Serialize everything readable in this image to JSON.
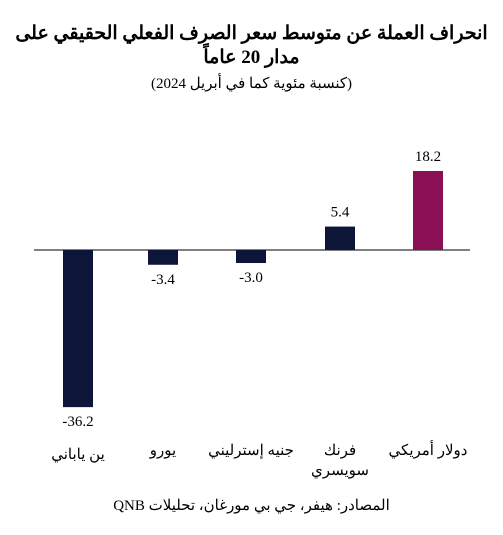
{
  "chart_data": {
    "type": "bar",
    "title": "انحراف العملة عن متوسط سعر الصرف الفعلي الحقيقي على مدار 20 عاماً",
    "subtitle": "(كنسبة مئوية كما في أبريل 2024)",
    "categories": [
      "دولار أمريكي",
      "فرنك سويسري",
      "جنيه إسترليني",
      "يورو",
      "ين ياباني"
    ],
    "values": [
      18.2,
      5.4,
      -3.0,
      -3.4,
      -36.2
    ],
    "value_labels": [
      "18.2",
      "5.4",
      "-3.0",
      "-3.4",
      "-36.2"
    ],
    "colors": [
      "#8b0f55",
      "#0d1538",
      "#0d1538",
      "#0d1538",
      "#0d1538"
    ],
    "ylim": [
      -36.2,
      18.2
    ],
    "grid": false,
    "legend": "none"
  },
  "source": "المصادر: هيفر، جي بي مورغان، تحليلات QNB"
}
